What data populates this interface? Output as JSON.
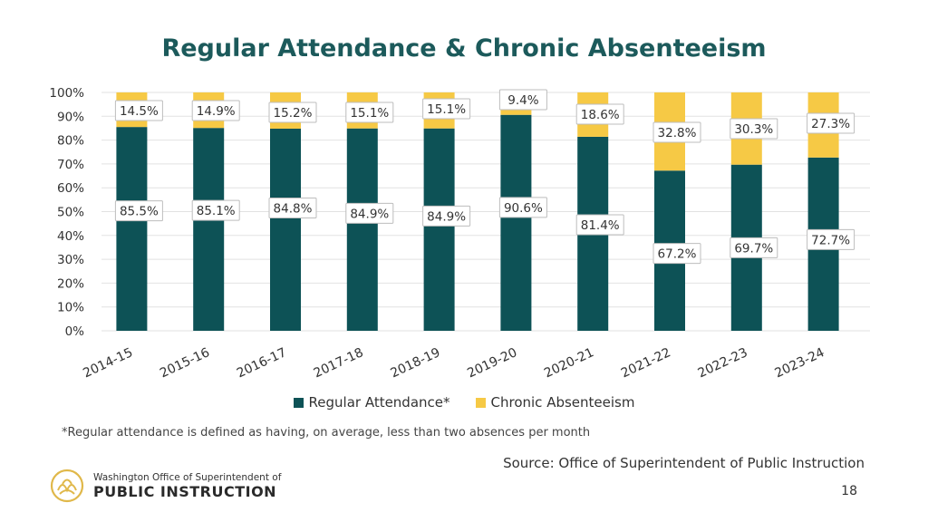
{
  "chart_data": {
    "type": "bar",
    "stacked": true,
    "title": "Regular Attendance & Chronic Absenteeism",
    "categories": [
      "2014-15",
      "2015-16",
      "2016-17",
      "2017-18",
      "2018-19",
      "2019-20",
      "2020-21",
      "2021-22",
      "2022-23",
      "2023-24"
    ],
    "series": [
      {
        "name": "Regular Attendance*",
        "color": "#0d5256",
        "values": [
          85.5,
          85.1,
          84.8,
          84.9,
          84.9,
          90.6,
          81.4,
          67.2,
          69.7,
          72.7
        ],
        "labels": [
          "85.5%",
          "85.1%",
          "84.8%",
          "84.9%",
          "84.9%",
          "90.6%",
          "81.4%",
          "67.2%",
          "69.7%",
          "72.7%"
        ]
      },
      {
        "name": "Chronic Absenteeism",
        "color": "#f6c945",
        "values": [
          14.5,
          14.9,
          15.2,
          15.1,
          15.1,
          9.4,
          18.6,
          32.8,
          30.3,
          27.3
        ],
        "labels": [
          "14.5%",
          "14.9%",
          "15.2%",
          "15.1%",
          "15.1%",
          "9.4%",
          "18.6%",
          "32.8%",
          "30.3%",
          "27.3%"
        ]
      }
    ],
    "ylim": [
      0,
      100
    ],
    "yticks": [
      "0%",
      "10%",
      "20%",
      "30%",
      "40%",
      "50%",
      "60%",
      "70%",
      "80%",
      "90%",
      "100%"
    ],
    "grid": true,
    "legend": "bottom"
  },
  "footnote": "*Regular attendance is defined as having, on average, less than two absences per month",
  "source": "Source: Office of Superintendent of Public Instruction",
  "page_number": "18",
  "logo": {
    "line1": "Washington Office of Superintendent of",
    "line2": "PUBLIC INSTRUCTION"
  },
  "colors": {
    "title": "#1c5a5b",
    "logo": "#e0b84a"
  }
}
